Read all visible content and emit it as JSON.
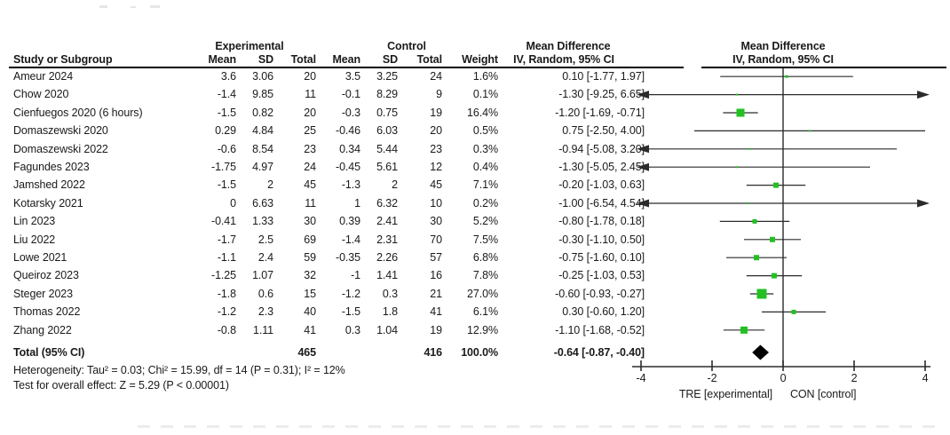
{
  "header": {
    "group_experimental": "Experimental",
    "group_control": "Control",
    "col_study": "Study or Subgroup",
    "col_mean": "Mean",
    "col_sd": "SD",
    "col_total": "Total",
    "col_weight": "Weight",
    "md_title_text_col": "Mean Difference",
    "md_sub_text_col": "IV, Random, 95% CI",
    "md_title_plot_col": "Mean Difference",
    "md_sub_plot_col": "IV, Random, 95% CI"
  },
  "colors": {
    "marker_green": "#22C022",
    "diamond_black": "#000000",
    "line_dark": "#2b2b2b"
  },
  "chart_data": {
    "type": "forest",
    "effect_measure": "Mean Difference",
    "method": "IV, Random, 95% CI",
    "xlim": [
      -4,
      4
    ],
    "ticks": [
      -4,
      -2,
      0,
      2,
      4
    ],
    "axis_left_label": "TRE [experimental]",
    "axis_right_label": "CON [control]",
    "studies": [
      {
        "name": "Ameur 2024",
        "e_mean": "3.6",
        "e_sd": "3.06",
        "e_total": "20",
        "c_mean": "3.5",
        "c_sd": "3.25",
        "c_total": "24",
        "weight": "1.6%",
        "ci_text": "0.10 [-1.77, 1.97]",
        "md": 0.1,
        "lo": -1.77,
        "hi": 1.97
      },
      {
        "name": "Chow 2020",
        "e_mean": "-1.4",
        "e_sd": "9.85",
        "e_total": "11",
        "c_mean": "-0.1",
        "c_sd": "8.29",
        "c_total": "9",
        "weight": "0.1%",
        "ci_text": "-1.30 [-9.25, 6.65]",
        "md": -1.3,
        "lo": -9.25,
        "hi": 6.65
      },
      {
        "name": "Cienfuegos 2020 (6 hours)",
        "e_mean": "-1.5",
        "e_sd": "0.82",
        "e_total": "20",
        "c_mean": "-0.3",
        "c_sd": "0.75",
        "c_total": "19",
        "weight": "16.4%",
        "ci_text": "-1.20 [-1.69, -0.71]",
        "md": -1.2,
        "lo": -1.69,
        "hi": -0.71
      },
      {
        "name": "Domaszewski 2020",
        "e_mean": "0.29",
        "e_sd": "4.84",
        "e_total": "25",
        "c_mean": "-0.46",
        "c_sd": "6.03",
        "c_total": "20",
        "weight": "0.5%",
        "ci_text": "0.75 [-2.50, 4.00]",
        "md": 0.75,
        "lo": -2.5,
        "hi": 4.0
      },
      {
        "name": "Domaszewski 2022",
        "e_mean": "-0.6",
        "e_sd": "8.54",
        "e_total": "23",
        "c_mean": "0.34",
        "c_sd": "5.44",
        "c_total": "23",
        "weight": "0.3%",
        "ci_text": "-0.94 [-5.08, 3.20]",
        "md": -0.94,
        "lo": -5.08,
        "hi": 3.2
      },
      {
        "name": "Fagundes 2023",
        "e_mean": "-1.75",
        "e_sd": "4.97",
        "e_total": "24",
        "c_mean": "-0.45",
        "c_sd": "5.61",
        "c_total": "12",
        "weight": "0.4%",
        "ci_text": "-1.30 [-5.05, 2.45]",
        "md": -1.3,
        "lo": -5.05,
        "hi": 2.45
      },
      {
        "name": "Jamshed 2022",
        "e_mean": "-1.5",
        "e_sd": "2",
        "e_total": "45",
        "c_mean": "-1.3",
        "c_sd": "2",
        "c_total": "45",
        "weight": "7.1%",
        "ci_text": "-0.20 [-1.03, 0.63]",
        "md": -0.2,
        "lo": -1.03,
        "hi": 0.63
      },
      {
        "name": "Kotarsky 2021",
        "e_mean": "0",
        "e_sd": "6.63",
        "e_total": "11",
        "c_mean": "1",
        "c_sd": "6.32",
        "c_total": "10",
        "weight": "0.2%",
        "ci_text": "-1.00 [-6.54, 4.54]",
        "md": -1.0,
        "lo": -6.54,
        "hi": 4.54
      },
      {
        "name": "Lin 2023",
        "e_mean": "-0.41",
        "e_sd": "1.33",
        "e_total": "30",
        "c_mean": "0.39",
        "c_sd": "2.41",
        "c_total": "30",
        "weight": "5.2%",
        "ci_text": "-0.80 [-1.78, 0.18]",
        "md": -0.8,
        "lo": -1.78,
        "hi": 0.18
      },
      {
        "name": "Liu 2022",
        "e_mean": "-1.7",
        "e_sd": "2.5",
        "e_total": "69",
        "c_mean": "-1.4",
        "c_sd": "2.31",
        "c_total": "70",
        "weight": "7.5%",
        "ci_text": "-0.30 [-1.10, 0.50]",
        "md": -0.3,
        "lo": -1.1,
        "hi": 0.5
      },
      {
        "name": "Lowe 2021",
        "e_mean": "-1.1",
        "e_sd": "2.4",
        "e_total": "59",
        "c_mean": "-0.35",
        "c_sd": "2.26",
        "c_total": "57",
        "weight": "6.8%",
        "ci_text": "-0.75 [-1.60, 0.10]",
        "md": -0.75,
        "lo": -1.6,
        "hi": 0.1
      },
      {
        "name": "Queiroz 2023",
        "e_mean": "-1.25",
        "e_sd": "1.07",
        "e_total": "32",
        "c_mean": "-1",
        "c_sd": "1.41",
        "c_total": "16",
        "weight": "7.8%",
        "ci_text": "-0.25 [-1.03, 0.53]",
        "md": -0.25,
        "lo": -1.03,
        "hi": 0.53
      },
      {
        "name": "Steger 2023",
        "e_mean": "-1.8",
        "e_sd": "0.6",
        "e_total": "15",
        "c_mean": "-1.2",
        "c_sd": "0.3",
        "c_total": "21",
        "weight": "27.0%",
        "ci_text": "-0.60 [-0.93, -0.27]",
        "md": -0.6,
        "lo": -0.93,
        "hi": -0.27
      },
      {
        "name": "Thomas 2022",
        "e_mean": "-1.2",
        "e_sd": "2.3",
        "e_total": "40",
        "c_mean": "-1.5",
        "c_sd": "1.8",
        "c_total": "41",
        "weight": "6.1%",
        "ci_text": "0.30 [-0.60, 1.20]",
        "md": 0.3,
        "lo": -0.6,
        "hi": 1.2
      },
      {
        "name": "Zhang 2022",
        "e_mean": "-0.8",
        "e_sd": "1.11",
        "e_total": "41",
        "c_mean": "0.3",
        "c_sd": "1.04",
        "c_total": "19",
        "weight": "12.9%",
        "ci_text": "-1.10 [-1.68, -0.52]",
        "md": -1.1,
        "lo": -1.68,
        "hi": -0.52
      }
    ],
    "total": {
      "label": "Total (95% CI)",
      "e_total": "465",
      "c_total": "416",
      "weight": "100.0%",
      "ci_text": "-0.64 [-0.87, -0.40]",
      "md": -0.64,
      "lo": -0.87,
      "hi": -0.4
    },
    "heterogeneity": "Heterogeneity: Tau² = 0.03; Chi² = 15.99, df = 14 (P = 0.31); I² = 12%",
    "overall_effect": "Test for overall effect: Z = 5.29 (P < 0.00001)"
  }
}
